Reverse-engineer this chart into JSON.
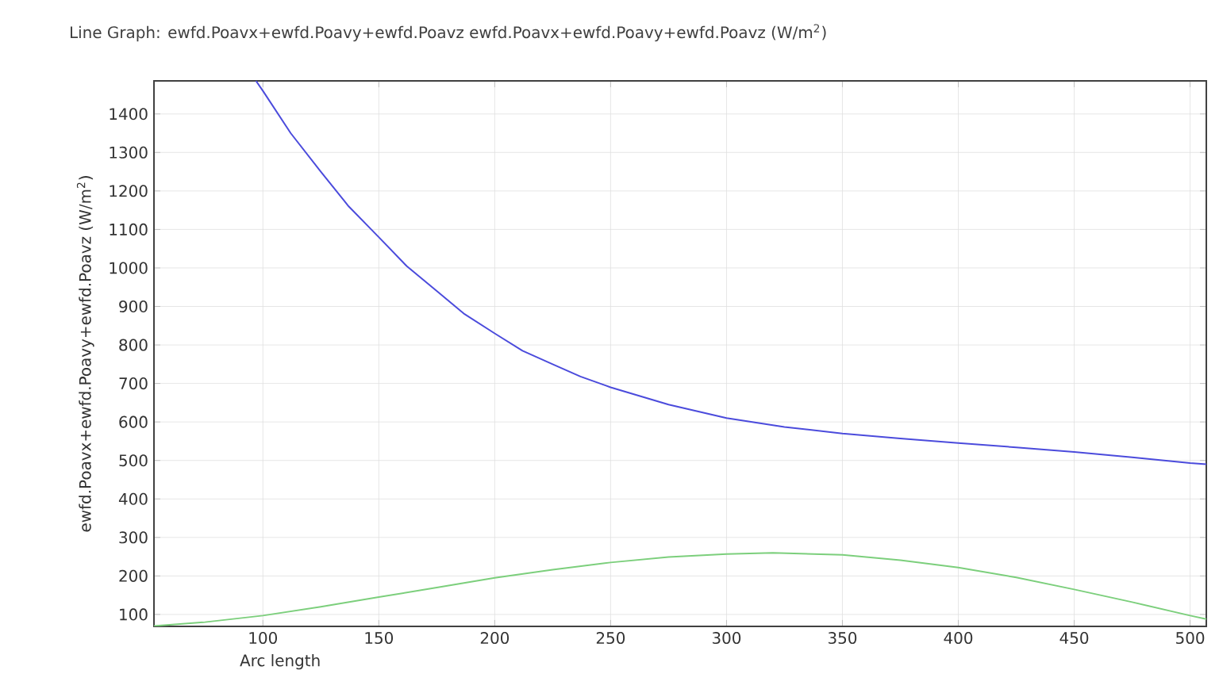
{
  "chart_data": {
    "type": "line",
    "title": "Line Graph: ewfd.Poavx+ewfd.Poavy+ewfd.Poavz ewfd.Poavx+ewfd.Poavy+ewfd.Poavz (W/m$^{2}$)",
    "xlabel": "Arc length",
    "ylabel": "ewfd.Poavx+ewfd.Poavy+ewfd.Poavz (W/m$^{2}$)",
    "series": [
      {
        "color": "#4b4bdc",
        "x": [
          97,
          100,
          112,
          125,
          137,
          150,
          162,
          175,
          187,
          200,
          212,
          225,
          237,
          250,
          275,
          300,
          325,
          350,
          375,
          400,
          425,
          450,
          475,
          500,
          507
        ],
        "values": [
          1486,
          1460,
          1350,
          1250,
          1160,
          1080,
          1005,
          940,
          880,
          830,
          785,
          750,
          718,
          690,
          645,
          610,
          587,
          570,
          557,
          545,
          534,
          522,
          508,
          493,
          490
        ]
      },
      {
        "color": "#7ccf7c",
        "x": [
          53,
          75,
          100,
          125,
          150,
          175,
          200,
          225,
          250,
          275,
          300,
          320,
          350,
          375,
          400,
          425,
          450,
          475,
          500,
          507
        ],
        "values": [
          70,
          80,
          97,
          120,
          145,
          170,
          195,
          216,
          235,
          249,
          257,
          260,
          255,
          241,
          222,
          196,
          165,
          132,
          97,
          88
        ]
      }
    ],
    "xlim": [
      53,
      507
    ],
    "ylim": [
      69,
      1486
    ],
    "xticks": [
      100,
      150,
      200,
      250,
      300,
      350,
      400,
      450,
      500
    ],
    "yticks": [
      100,
      200,
      300,
      400,
      500,
      600,
      700,
      800,
      900,
      1000,
      1100,
      1200,
      1300,
      1400
    ],
    "grid": true,
    "marker": "none",
    "line_style": "solid"
  }
}
